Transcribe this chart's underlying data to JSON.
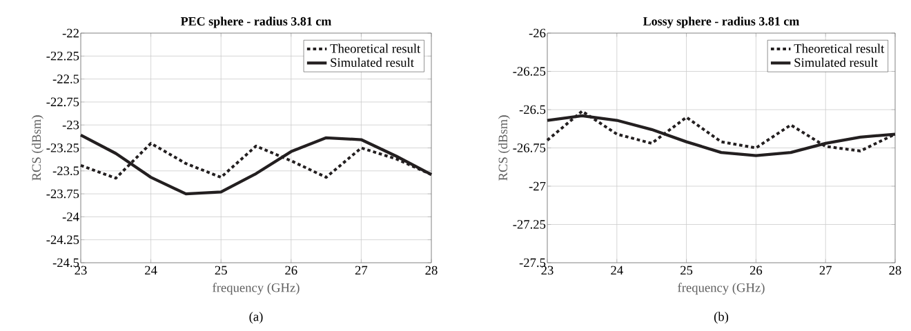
{
  "chart_data": [
    {
      "type": "line",
      "title": "PEC sphere - radius 3.81 cm",
      "xlabel": "frequency (GHz)",
      "ylabel": "RCS (dBsm)",
      "annotations": [
        "(a)"
      ],
      "x": [
        23,
        23.5,
        24,
        24.5,
        25,
        25.5,
        26,
        26.5,
        27,
        27.5,
        28
      ],
      "series": [
        {
          "name": "Theoretical result",
          "color": "#231f20",
          "line_style": "dotted",
          "values": [
            -23.44,
            -23.58,
            -23.2,
            -23.42,
            -23.57,
            -23.23,
            -23.39,
            -23.57,
            -23.25,
            -23.37,
            -23.54
          ]
        },
        {
          "name": "Simulated result",
          "color": "#231f20",
          "line_style": "solid",
          "values": [
            -23.11,
            -23.31,
            -23.57,
            -23.75,
            -23.73,
            -23.53,
            -23.29,
            -23.14,
            -23.16,
            -23.34,
            -23.54
          ]
        }
      ],
      "xlim": [
        23,
        28
      ],
      "ylim": [
        -24.5,
        -22
      ],
      "xticks": [
        23,
        24,
        25,
        26,
        27,
        28
      ],
      "yticks": [
        -24.5,
        -24.25,
        -24,
        -23.75,
        -23.5,
        -23.25,
        -23,
        -22.75,
        -22.5,
        -22.25,
        -22
      ],
      "grid": true,
      "legend": "top right",
      "marker": "none"
    },
    {
      "type": "line",
      "title": "Lossy sphere - radius 3.81 cm",
      "xlabel": "frequency (GHz)",
      "ylabel": "RCS (dBsm)",
      "annotations": [
        "(b)"
      ],
      "x": [
        23,
        23.5,
        24,
        24.5,
        25,
        25.5,
        26,
        26.5,
        27,
        27.5,
        28
      ],
      "series": [
        {
          "name": "Theoretical result",
          "color": "#231f20",
          "line_style": "dotted",
          "values": [
            -26.7,
            -26.51,
            -26.66,
            -26.72,
            -26.55,
            -26.71,
            -26.75,
            -26.6,
            -26.74,
            -26.77,
            -26.66
          ]
        },
        {
          "name": "Simulated result",
          "color": "#231f20",
          "line_style": "solid",
          "values": [
            -26.57,
            -26.54,
            -26.57,
            -26.63,
            -26.71,
            -26.78,
            -26.8,
            -26.78,
            -26.72,
            -26.68,
            -26.66
          ]
        }
      ],
      "xlim": [
        23,
        28
      ],
      "ylim": [
        -27.5,
        -26
      ],
      "xticks": [
        23,
        24,
        25,
        26,
        27,
        28
      ],
      "yticks": [
        -27.5,
        -27.25,
        -27,
        -26.75,
        -26.5,
        -26.25,
        -26
      ],
      "grid": true,
      "legend": "top right",
      "marker": "none"
    }
  ]
}
